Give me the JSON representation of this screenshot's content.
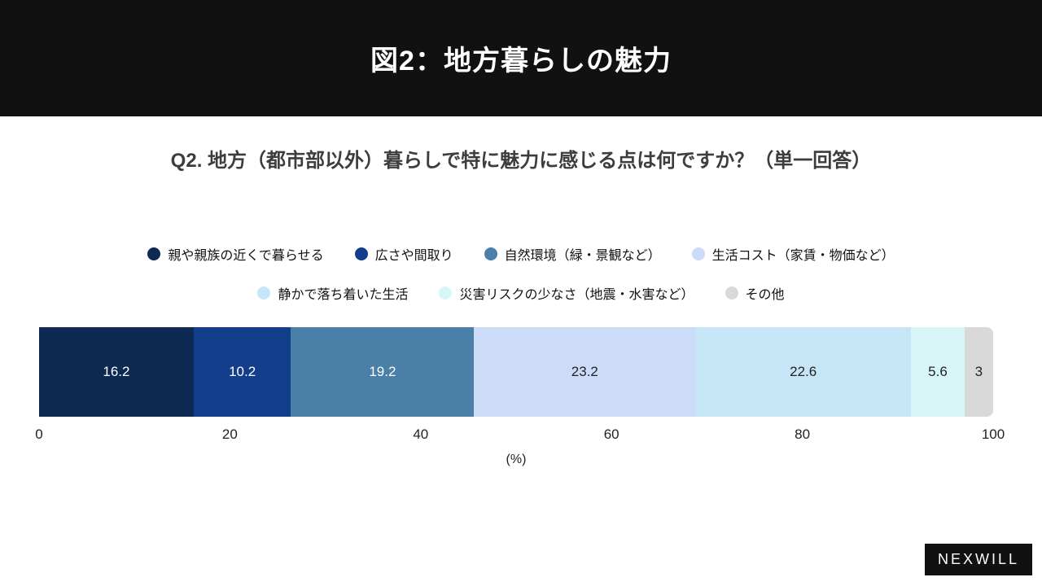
{
  "header": {
    "title": "図2：地方暮らしの魅力"
  },
  "question": "Q2. 地方（都市部以外）暮らしで特に魅力に感じる点は何ですか？（単一回答）",
  "legend": {
    "rows": [
      [
        0,
        1,
        2,
        3
      ],
      [
        4,
        5,
        6
      ]
    ]
  },
  "chart_data": {
    "type": "bar",
    "orientation": "horizontal-stacked",
    "title": "図2：地方暮らしの魅力",
    "categories": [
      "地方（都市部以外）暮らしで特に魅力に感じる点"
    ],
    "series": [
      {
        "label": "親や親族の近くで暮らせる",
        "value": 16.2,
        "color": "#0e2a52",
        "label_color": "#ffffff"
      },
      {
        "label": "広さや間取り",
        "value": 10.2,
        "color": "#123e8c",
        "label_color": "#ffffff"
      },
      {
        "label": "自然環境（緑・景観など）",
        "value": 19.2,
        "color": "#4a7fa8",
        "label_color": "#ffffff"
      },
      {
        "label": "生活コスト（家賃・物価など）",
        "value": 23.2,
        "color": "#ccdcf8",
        "label_color": "#222222"
      },
      {
        "label": "静かで落ち着いた生活",
        "value": 22.6,
        "color": "#c6e6f8",
        "label_color": "#222222"
      },
      {
        "label": "災害リスクの少なさ（地震・水害など）",
        "value": 5.6,
        "color": "#d8f6f8",
        "label_color": "#222222"
      },
      {
        "label": "その他",
        "value": 3,
        "color": "#d9d9d9",
        "label_color": "#222222"
      }
    ],
    "xlabel": "(%)",
    "xlim": [
      0,
      100
    ],
    "ticks": [
      0,
      20,
      40,
      60,
      80,
      100
    ],
    "legend_position": "top",
    "grid": false
  },
  "footer": {
    "logo": "NEXWILL"
  }
}
